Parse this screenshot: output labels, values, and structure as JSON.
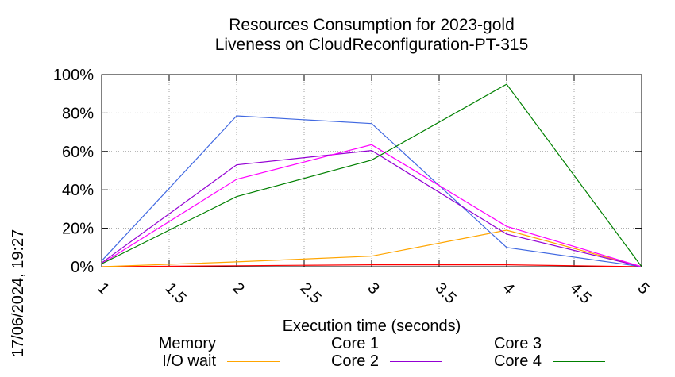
{
  "chart_data": {
    "type": "line",
    "title": [
      "Resources Consumption for 2023-gold",
      "Liveness on CloudReconfiguration-PT-315"
    ],
    "xlabel": "Execution time (seconds)",
    "ylabel": "",
    "xlim": [
      1,
      5
    ],
    "ylim": [
      0,
      100
    ],
    "x_ticks": [
      "1",
      "1.5",
      "2",
      "2.5",
      "3",
      "3.5",
      "4",
      "4.5",
      "5"
    ],
    "y_ticks": [
      "0%",
      "20%",
      "40%",
      "60%",
      "80%",
      "100%"
    ],
    "grid": true,
    "legend_position": "bottom",
    "series": [
      {
        "name": "Memory",
        "color": "#ff0000",
        "x": [
          1,
          2,
          3,
          4,
          5
        ],
        "y": [
          0,
          0.5,
          1,
          1,
          0
        ]
      },
      {
        "name": "I/O wait",
        "color": "#ffa500",
        "x": [
          1,
          2,
          3,
          4,
          5
        ],
        "y": [
          0,
          2.5,
          5.5,
          19,
          0
        ]
      },
      {
        "name": "Core 1",
        "color": "#4169e1",
        "x": [
          1,
          2,
          3,
          4,
          5
        ],
        "y": [
          3,
          78.5,
          74.5,
          10,
          0
        ]
      },
      {
        "name": "Core 2",
        "color": "#9400d3",
        "x": [
          1,
          2,
          3,
          4,
          5
        ],
        "y": [
          2,
          53,
          60.5,
          17,
          0
        ]
      },
      {
        "name": "Core 3",
        "color": "#ff00ff",
        "x": [
          1,
          2,
          3,
          4,
          5
        ],
        "y": [
          1.5,
          45.5,
          63.5,
          21,
          0
        ]
      },
      {
        "name": "Core 4",
        "color": "#008000",
        "x": [
          1,
          2,
          3,
          4,
          5
        ],
        "y": [
          1.5,
          36.5,
          55.5,
          95,
          0
        ]
      }
    ]
  },
  "side_stamp": "17/06/2024, 19:27",
  "legend": [
    {
      "label": "Memory"
    },
    {
      "label": "I/O wait"
    },
    {
      "label": "Core 1"
    },
    {
      "label": "Core 2"
    },
    {
      "label": "Core 3"
    },
    {
      "label": "Core 4"
    }
  ]
}
